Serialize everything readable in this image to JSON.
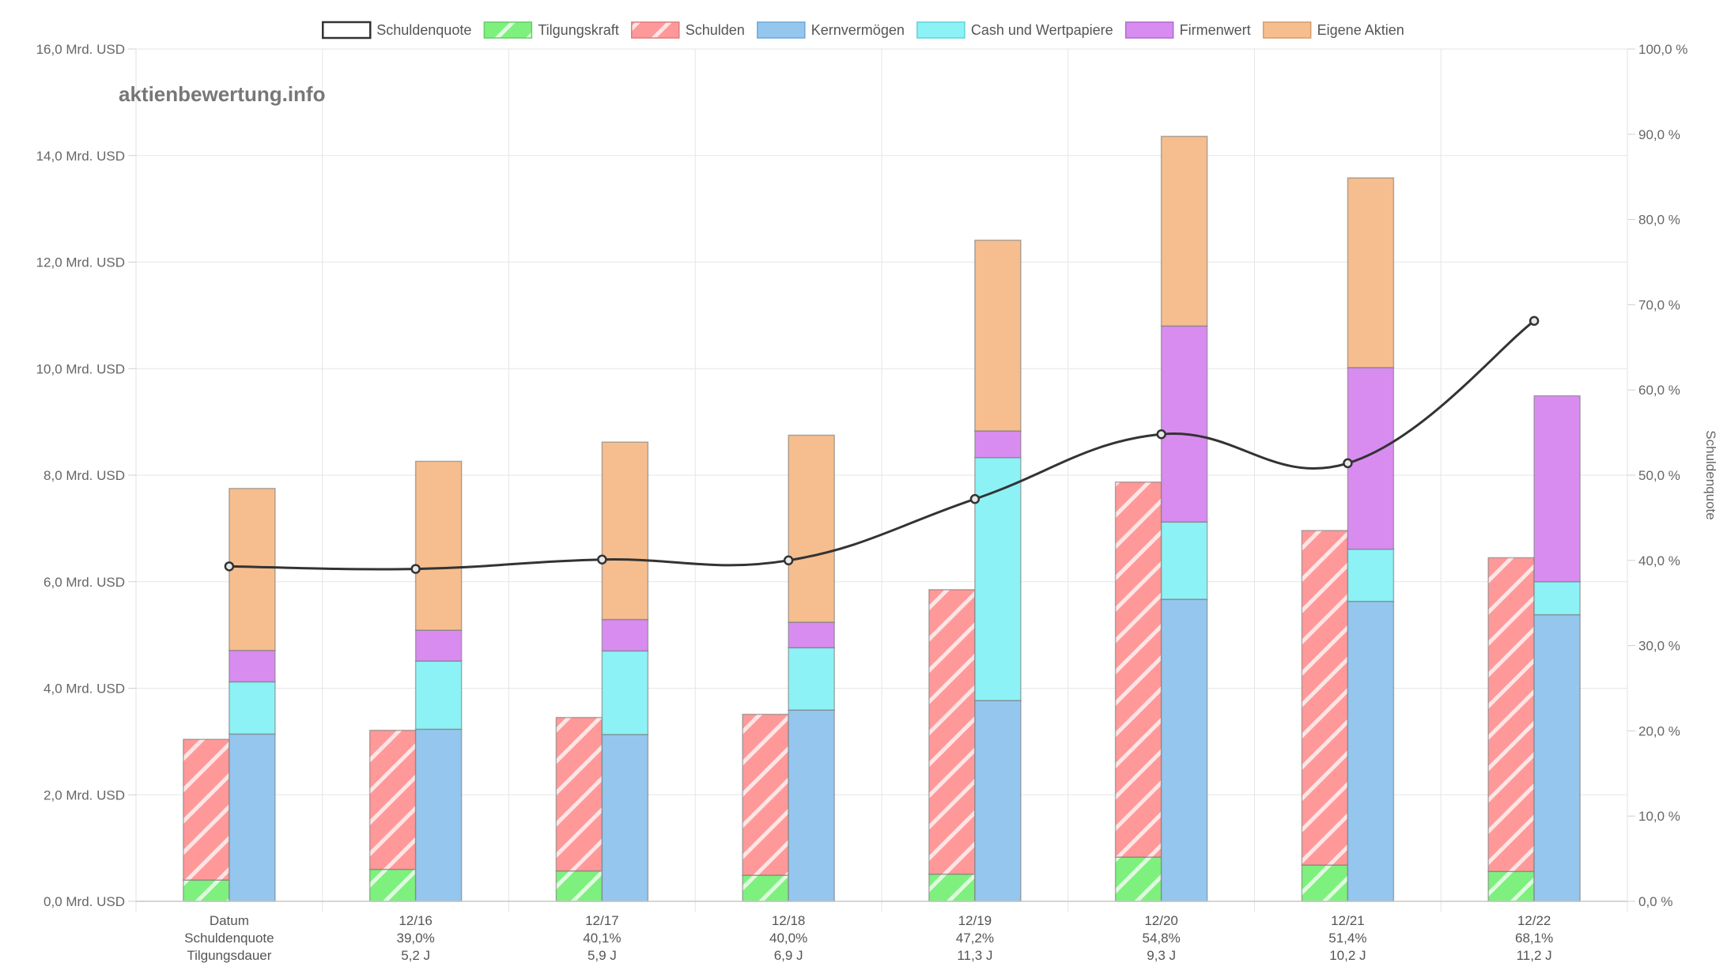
{
  "watermark": "aktienbewertung.info",
  "chart_data": {
    "type": "bar",
    "categories": [
      "Datum",
      "12/16",
      "12/17",
      "12/18",
      "12/19",
      "12/20",
      "12/21",
      "12/22"
    ],
    "x_info_rows": [
      [
        "Datum",
        "12/16",
        "12/17",
        "12/18",
        "12/19",
        "12/20",
        "12/21",
        "12/22"
      ],
      [
        "Schuldenquote",
        "39,0%",
        "40,1%",
        "40,0%",
        "47,2%",
        "54,8%",
        "51,4%",
        "68,1%"
      ],
      [
        "Tilgungsdauer",
        "5,2 J",
        "5,9 J",
        "6,9 J",
        "11,3 J",
        "9,3 J",
        "10,2 J",
        "11,2 J"
      ]
    ],
    "left_axis": {
      "min": 0,
      "max": 16,
      "ticks": [
        0,
        2,
        4,
        6,
        8,
        10,
        12,
        14,
        16
      ],
      "tick_labels": [
        "0,0 Mrd. USD",
        "2,0 Mrd. USD",
        "4,0 Mrd. USD",
        "6,0 Mrd. USD",
        "8,0 Mrd. USD",
        "10,0 Mrd. USD",
        "12,0 Mrd. USD",
        "14,0 Mrd. USD",
        "16,0 Mrd. USD"
      ]
    },
    "right_axis": {
      "title": "Schuldenquote",
      "min": 0,
      "max": 100,
      "ticks": [
        0,
        10,
        20,
        30,
        40,
        50,
        60,
        70,
        80,
        90,
        100
      ],
      "tick_labels": [
        "0,0 %",
        "10,0 %",
        "20,0 %",
        "30,0 %",
        "40,0 %",
        "50,0 %",
        "60,0 %",
        "70,0 %",
        "80,0 %",
        "90,0 %",
        "100,0 %"
      ]
    },
    "legend": [
      {
        "name": "Schuldenquote",
        "color": "#ffffff",
        "border": "#333333",
        "pattern": false
      },
      {
        "name": "Tilgungskraft",
        "color": "#7ef07e",
        "border": "#66cc66",
        "pattern": true
      },
      {
        "name": "Schulden",
        "color": "#ff9999",
        "border": "#e07a7a",
        "pattern": true
      },
      {
        "name": "Kernvermögen",
        "color": "#95c6ee",
        "border": "#6fa8d6",
        "pattern": false
      },
      {
        "name": "Cash und Wertpapiere",
        "color": "#8cf2f6",
        "border": "#5fd2d8",
        "pattern": false
      },
      {
        "name": "Firmenwert",
        "color": "#d88cf0",
        "border": "#b06ad0",
        "pattern": false
      },
      {
        "name": "Eigene Aktien",
        "color": "#f6be8e",
        "border": "#d89a6a",
        "pattern": false
      }
    ],
    "stack_left": [
      {
        "name": "Tilgungskraft",
        "values": [
          0.4,
          0.6,
          0.57,
          0.49,
          0.51,
          0.83,
          0.68,
          0.56
        ]
      },
      {
        "name": "Schulden",
        "values": [
          2.64,
          2.61,
          2.88,
          3.02,
          5.34,
          7.04,
          6.28,
          5.89
        ]
      }
    ],
    "stack_right": [
      {
        "name": "Kernvermögen",
        "values": [
          3.14,
          3.23,
          3.13,
          3.59,
          3.77,
          5.67,
          5.63,
          5.38
        ]
      },
      {
        "name": "Cash und Wertpapiere",
        "values": [
          0.98,
          1.28,
          1.57,
          1.17,
          4.56,
          1.45,
          0.98,
          0.62
        ]
      },
      {
        "name": "Firmenwert",
        "values": [
          0.59,
          0.58,
          0.59,
          0.48,
          0.5,
          3.68,
          3.41,
          3.49
        ]
      },
      {
        "name": "Eigene Aktien",
        "values": [
          3.04,
          3.17,
          3.33,
          3.51,
          3.58,
          3.56,
          3.56,
          0.0
        ]
      }
    ],
    "line": {
      "name": "Schuldenquote",
      "axis": "right",
      "values": [
        39.3,
        39.0,
        40.1,
        40.0,
        47.2,
        54.8,
        51.4,
        68.1
      ]
    },
    "grid": true
  }
}
